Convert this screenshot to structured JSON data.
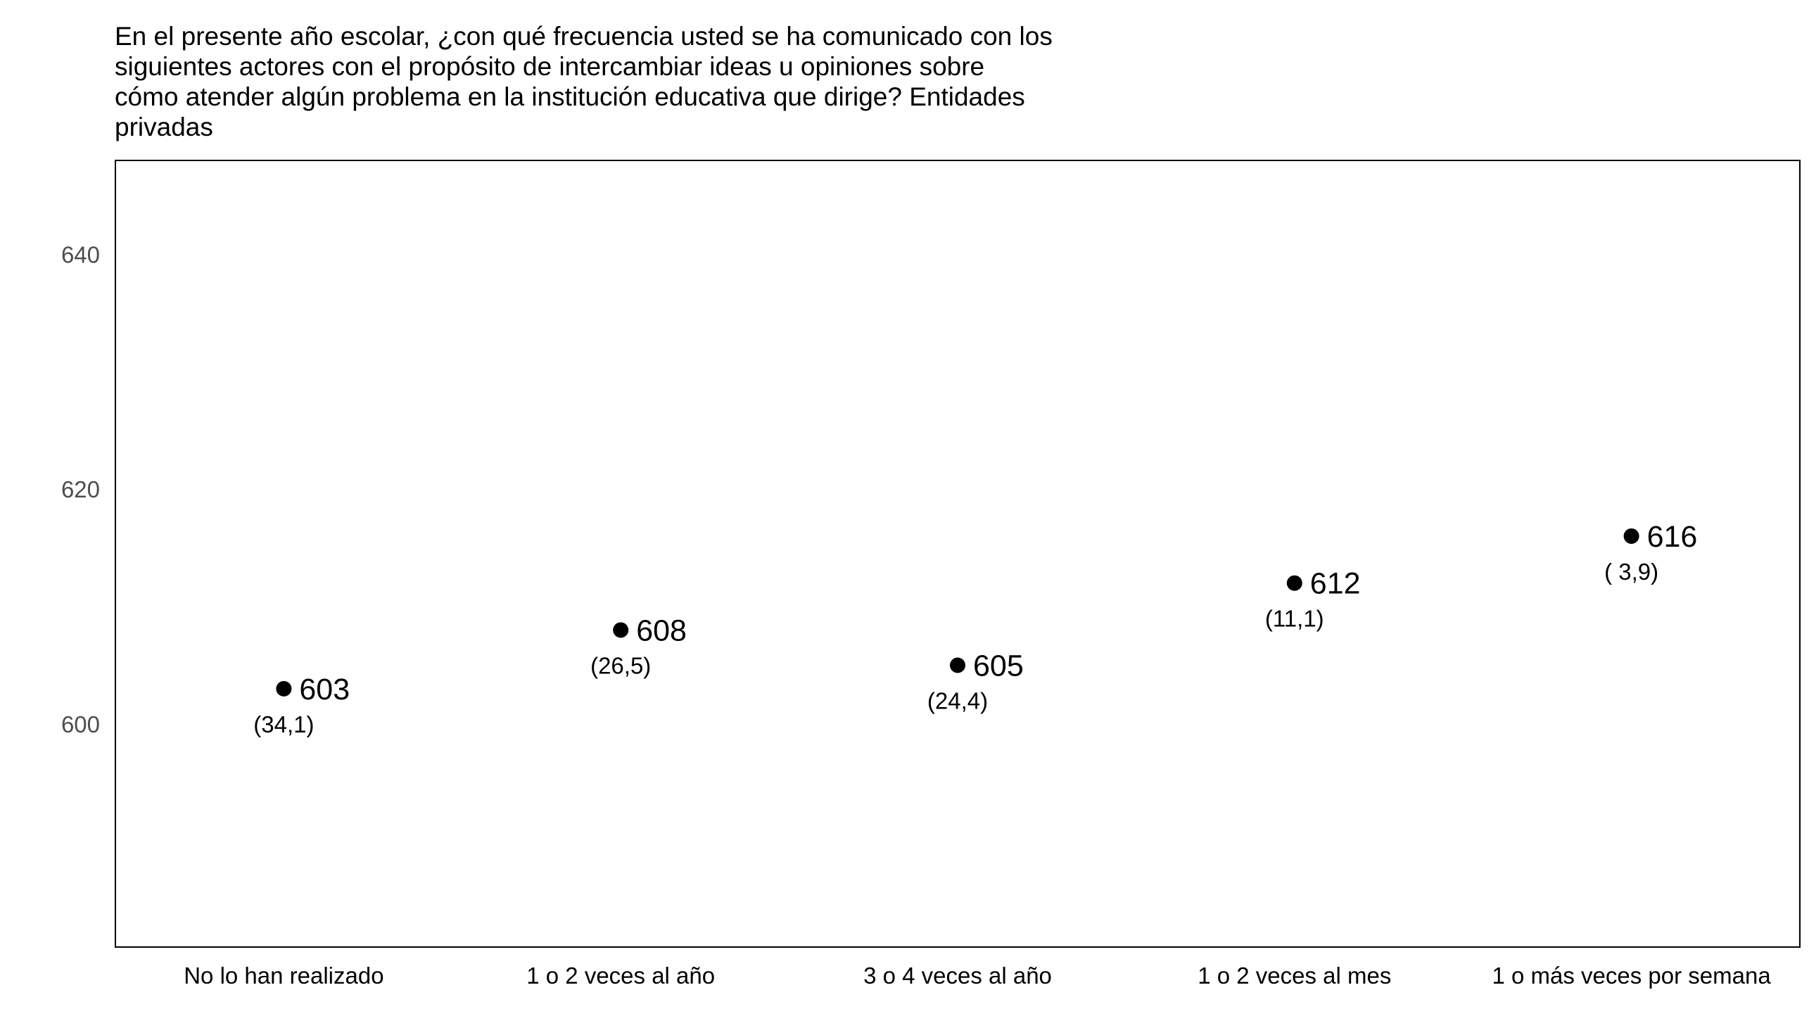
{
  "chart_data": {
    "type": "scatter",
    "title": "En el presente año escolar, ¿con qué frecuencia usted se ha comunicado con los\nsiguientes actores con el propósito de intercambiar ideas u opiniones sobre\ncómo atender algún problema en la institución educativa que dirige? Entidades\nprivadas",
    "xlabel": "",
    "ylabel": "",
    "categories": [
      "No lo han realizado",
      "1 o 2 veces al año",
      "3 o 4 veces al año",
      "1 o 2 veces al mes",
      "1 o más veces por semana"
    ],
    "values": [
      603,
      608,
      605,
      612,
      616
    ],
    "value_labels": [
      "603",
      "608",
      "605",
      "612",
      "616"
    ],
    "se_labels": [
      "(34,1)",
      "(26,5)",
      "(24,4)",
      "(11,1)",
      "( 3,9)"
    ],
    "yticks": [
      600,
      620,
      640
    ],
    "ytick_labels": [
      "600",
      "620",
      "640"
    ],
    "ylim": [
      581,
      648
    ],
    "grid": false,
    "legend": "none",
    "colors": {
      "point": "#000000",
      "frame": "#000000",
      "y_tick_text": "#4d4d4d"
    }
  }
}
